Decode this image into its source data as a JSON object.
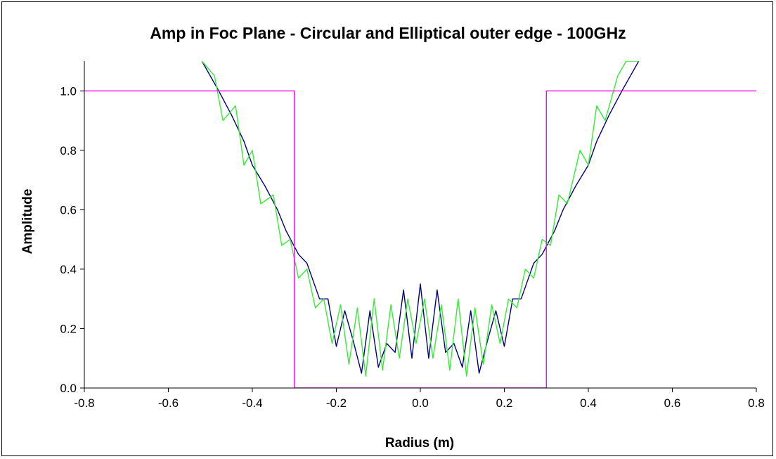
{
  "chart_data": {
    "type": "line",
    "title": "Amp in Foc Plane  - Circular and Elliptical outer edge - 100GHz",
    "xlabel": "Radius (m)",
    "ylabel": "Amplitude",
    "xlim": [
      -0.8,
      0.8
    ],
    "ylim": [
      0.0,
      1.1
    ],
    "xticks": [
      "-0.8",
      "-0.6",
      "-0.4",
      "-0.2",
      "0.0",
      "0.2",
      "0.4",
      "0.6",
      "0.8"
    ],
    "yticks": [
      "0.0",
      "0.2",
      "0.4",
      "0.6",
      "0.8",
      "1.0"
    ],
    "grid": false,
    "legend": "none",
    "series": [
      {
        "color": "#000080",
        "x": [
          -0.52,
          -0.48,
          -0.45,
          -0.42,
          -0.4,
          -0.37,
          -0.34,
          -0.32,
          -0.29,
          -0.27,
          -0.24,
          -0.22,
          -0.2,
          -0.18,
          -0.16,
          -0.14,
          -0.12,
          -0.1,
          -0.08,
          -0.06,
          -0.04,
          -0.02,
          0.0,
          0.02,
          0.04,
          0.06,
          0.08,
          0.1,
          0.12,
          0.14,
          0.16,
          0.18,
          0.2,
          0.22,
          0.24,
          0.27,
          0.29,
          0.32,
          0.34,
          0.37,
          0.4,
          0.42,
          0.45,
          0.48,
          0.52
        ],
        "y": [
          1.1,
          1.0,
          0.92,
          0.83,
          0.75,
          0.68,
          0.6,
          0.53,
          0.45,
          0.42,
          0.3,
          0.3,
          0.14,
          0.26,
          0.16,
          0.05,
          0.26,
          0.07,
          0.15,
          0.12,
          0.33,
          0.1,
          0.35,
          0.1,
          0.33,
          0.12,
          0.15,
          0.07,
          0.26,
          0.05,
          0.16,
          0.26,
          0.14,
          0.3,
          0.3,
          0.42,
          0.45,
          0.53,
          0.6,
          0.68,
          0.75,
          0.83,
          0.92,
          1.0,
          1.1
        ]
      },
      {
        "color": "#33ee33",
        "x": [
          -0.52,
          -0.49,
          -0.47,
          -0.44,
          -0.42,
          -0.4,
          -0.38,
          -0.35,
          -0.33,
          -0.31,
          -0.29,
          -0.27,
          -0.25,
          -0.23,
          -0.21,
          -0.19,
          -0.17,
          -0.15,
          -0.13,
          -0.11,
          -0.09,
          -0.07,
          -0.05,
          -0.03,
          -0.01,
          0.01,
          0.03,
          0.05,
          0.07,
          0.09,
          0.11,
          0.13,
          0.15,
          0.17,
          0.19,
          0.21,
          0.23,
          0.25,
          0.27,
          0.29,
          0.31,
          0.33,
          0.35,
          0.38,
          0.4,
          0.42,
          0.44,
          0.47,
          0.49,
          0.52
        ],
        "y": [
          1.1,
          1.05,
          0.9,
          0.95,
          0.75,
          0.8,
          0.62,
          0.65,
          0.48,
          0.5,
          0.37,
          0.4,
          0.27,
          0.3,
          0.15,
          0.28,
          0.08,
          0.27,
          0.04,
          0.3,
          0.06,
          0.28,
          0.1,
          0.3,
          0.15,
          0.3,
          0.1,
          0.28,
          0.06,
          0.3,
          0.04,
          0.27,
          0.08,
          0.28,
          0.15,
          0.3,
          0.27,
          0.4,
          0.37,
          0.5,
          0.48,
          0.65,
          0.62,
          0.8,
          0.75,
          0.95,
          0.9,
          1.05,
          1.1,
          1.1
        ]
      },
      {
        "color": "#ff00ff",
        "x": [
          -0.8,
          -0.3,
          -0.3,
          0.3,
          0.3,
          0.8
        ],
        "y": [
          1.0,
          1.0,
          0.0,
          0.0,
          1.0,
          1.0
        ]
      }
    ]
  }
}
